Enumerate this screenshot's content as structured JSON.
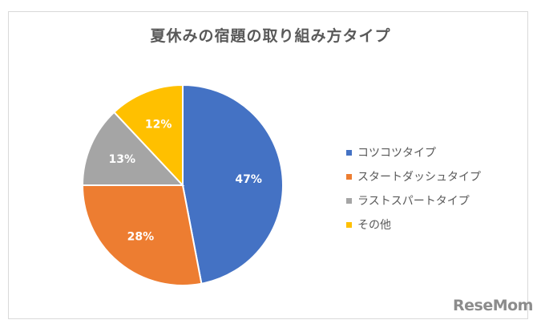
{
  "chart_data": {
    "type": "pie",
    "title": "夏休みの宿題の取り組み方タイプ",
    "categories": [
      "コツコツタイプ",
      "スタートダッシュタイプ",
      "ラストスパートタイプ",
      "その他"
    ],
    "values": [
      47,
      28,
      13,
      12
    ],
    "labels": [
      "47%",
      "28%",
      "13%",
      "12%"
    ],
    "colors": [
      "#4472c4",
      "#ed7d31",
      "#a5a5a5",
      "#ffc000"
    ],
    "legend_position": "right",
    "start_angle_deg": 0,
    "direction": "clockwise"
  },
  "watermark": "ReseMom"
}
